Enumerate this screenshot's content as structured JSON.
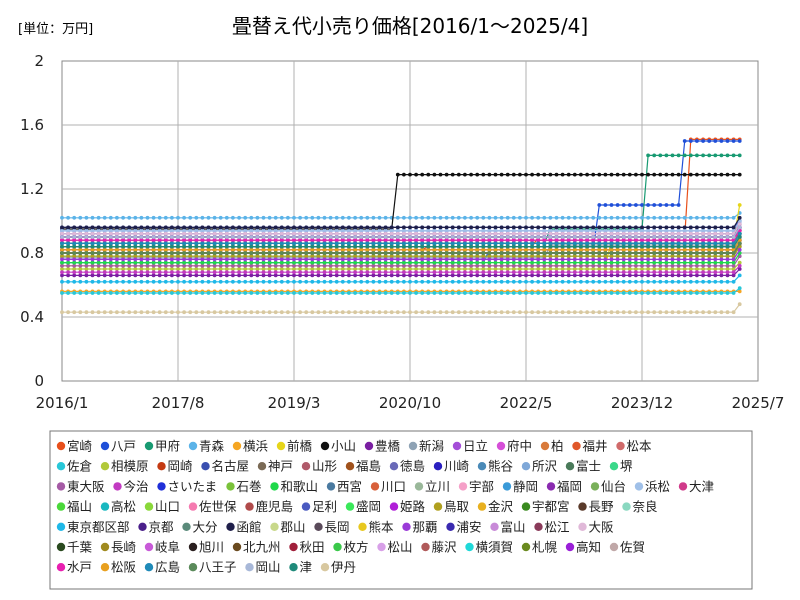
{
  "chart_data": {
    "type": "line",
    "title": "畳替え代小売り価格[2016/1〜2025/4]",
    "unit_label": "[単位：万円]",
    "xlabel": "",
    "ylabel": "",
    "x_ticks": [
      "2016/1",
      "2017/8",
      "2019/3",
      "2020/10",
      "2022/5",
      "2023/12",
      "2025/7"
    ],
    "y_ticks": [
      "0",
      "0.4",
      "0.8",
      "1.2",
      "1.6",
      "2"
    ],
    "ylim": [
      0,
      2
    ],
    "xlim_months": [
      0,
      114
    ],
    "grid": true,
    "legend_position": "bottom",
    "series": [
      {
        "name": "宮崎",
        "color": "#e8501c",
        "values": [
          [
            0,
            0.82
          ],
          [
            60,
            0.84
          ],
          [
            78,
            0.9
          ],
          [
            103,
            1.51
          ],
          [
            111,
            1.51
          ]
        ]
      },
      {
        "name": "八戸",
        "color": "#1f4fd8",
        "values": [
          [
            0,
            0.74
          ],
          [
            70,
            0.82
          ],
          [
            88,
            1.1
          ],
          [
            102,
            1.5
          ],
          [
            111,
            1.5
          ]
        ]
      },
      {
        "name": "甲府",
        "color": "#189a72",
        "values": [
          [
            0,
            0.86
          ],
          [
            80,
            0.95
          ],
          [
            96,
            1.41
          ],
          [
            111,
            1.41
          ]
        ]
      },
      {
        "name": "青森",
        "color": "#5bb3e8",
        "values": [
          [
            0,
            1.02
          ],
          [
            111,
            1.05
          ]
        ]
      },
      {
        "name": "横浜",
        "color": "#f5a623",
        "values": [
          [
            0,
            0.56
          ],
          [
            111,
            0.56
          ]
        ]
      },
      {
        "name": "前橋",
        "color": "#e6d51a",
        "values": [
          [
            0,
            0.72
          ],
          [
            90,
            0.88
          ],
          [
            111,
            1.1
          ]
        ]
      },
      {
        "name": "小山",
        "color": "#111111",
        "values": [
          [
            0,
            0.95
          ],
          [
            36,
            0.95
          ],
          [
            55,
            1.29
          ],
          [
            111,
            1.29
          ]
        ]
      },
      {
        "name": "豊橋",
        "color": "#7a1fa2",
        "values": [
          [
            0,
            0.66
          ],
          [
            111,
            0.7
          ]
        ]
      },
      {
        "name": "新潟",
        "color": "#8fa3b5",
        "values": [
          [
            0,
            0.77
          ],
          [
            80,
            0.85
          ],
          [
            111,
            1.0
          ]
        ]
      },
      {
        "name": "日立",
        "color": "#a44ed8",
        "values": [
          [
            0,
            0.9
          ],
          [
            111,
            0.95
          ]
        ]
      },
      {
        "name": "府中",
        "color": "#d64fd8",
        "values": [
          [
            0,
            0.86
          ],
          [
            111,
            0.9
          ]
        ]
      },
      {
        "name": "柏",
        "color": "#d97a3a",
        "values": [
          [
            0,
            0.8
          ],
          [
            111,
            0.85
          ]
        ]
      },
      {
        "name": "福井",
        "color": "#e0582a",
        "values": [
          [
            0,
            0.88
          ],
          [
            111,
            0.92
          ]
        ]
      },
      {
        "name": "松本",
        "color": "#d06a6a",
        "values": [
          [
            0,
            0.84
          ],
          [
            111,
            0.9
          ]
        ]
      },
      {
        "name": "佐倉",
        "color": "#28c7d8",
        "values": [
          [
            0,
            0.55
          ],
          [
            111,
            0.58
          ]
        ]
      },
      {
        "name": "相模原",
        "color": "#b2c93a",
        "values": [
          [
            0,
            0.7
          ],
          [
            111,
            0.74
          ]
        ]
      },
      {
        "name": "岡崎",
        "color": "#c43a12",
        "values": [
          [
            0,
            0.88
          ],
          [
            111,
            0.92
          ]
        ]
      },
      {
        "name": "名古屋",
        "color": "#3a4fb0",
        "values": [
          [
            0,
            0.96
          ],
          [
            111,
            1.0
          ]
        ]
      },
      {
        "name": "神戸",
        "color": "#7a6a55",
        "values": [
          [
            0,
            0.8
          ],
          [
            111,
            0.84
          ]
        ]
      },
      {
        "name": "山形",
        "color": "#b05a6a",
        "values": [
          [
            0,
            0.92
          ],
          [
            111,
            0.98
          ]
        ]
      },
      {
        "name": "福島",
        "color": "#a0521c",
        "values": [
          [
            0,
            0.82
          ],
          [
            111,
            0.88
          ]
        ]
      },
      {
        "name": "徳島",
        "color": "#6a6ab8",
        "values": [
          [
            0,
            0.9
          ],
          [
            111,
            0.96
          ]
        ]
      },
      {
        "name": "川崎",
        "color": "#2a1fc0",
        "values": [
          [
            0,
            0.86
          ],
          [
            111,
            0.92
          ]
        ]
      },
      {
        "name": "熊谷",
        "color": "#4a8ab8",
        "values": [
          [
            0,
            0.84
          ],
          [
            111,
            0.9
          ]
        ]
      },
      {
        "name": "所沢",
        "color": "#7fa8d8",
        "values": [
          [
            0,
            0.88
          ],
          [
            111,
            0.94
          ]
        ]
      },
      {
        "name": "富士",
        "color": "#4a7a5a",
        "values": [
          [
            0,
            0.8
          ],
          [
            111,
            0.86
          ]
        ]
      },
      {
        "name": "堺",
        "color": "#3ad88a",
        "values": [
          [
            0,
            0.78
          ],
          [
            111,
            0.84
          ]
        ]
      },
      {
        "name": "東大阪",
        "color": "#a55aa5",
        "values": [
          [
            0,
            0.72
          ],
          [
            111,
            0.78
          ]
        ]
      },
      {
        "name": "今治",
        "color": "#c23ac2",
        "values": [
          [
            0,
            0.68
          ],
          [
            111,
            0.72
          ]
        ]
      },
      {
        "name": "さいたま",
        "color": "#1f2fd8",
        "values": [
          [
            0,
            0.94
          ],
          [
            111,
            1.0
          ]
        ]
      },
      {
        "name": "石巻",
        "color": "#7ac23a",
        "values": [
          [
            0,
            0.86
          ],
          [
            111,
            0.92
          ]
        ]
      },
      {
        "name": "和歌山",
        "color": "#1fd84a",
        "values": [
          [
            0,
            0.74
          ],
          [
            111,
            0.8
          ]
        ]
      },
      {
        "name": "西宮",
        "color": "#4a7aa0",
        "values": [
          [
            0,
            0.82
          ],
          [
            111,
            0.88
          ]
        ]
      },
      {
        "name": "川口",
        "color": "#d8603a",
        "values": [
          [
            0,
            0.9
          ],
          [
            111,
            0.96
          ]
        ]
      },
      {
        "name": "立川",
        "color": "#9ab89a",
        "values": [
          [
            0,
            0.84
          ],
          [
            111,
            0.9
          ]
        ]
      },
      {
        "name": "宇部",
        "color": "#f5a0c8",
        "values": [
          [
            0,
            0.92
          ],
          [
            111,
            0.98
          ]
        ]
      },
      {
        "name": "静岡",
        "color": "#3a9ad8",
        "values": [
          [
            0,
            0.86
          ],
          [
            111,
            0.92
          ]
        ]
      },
      {
        "name": "福岡",
        "color": "#8a2ab0",
        "values": [
          [
            0,
            0.8
          ],
          [
            111,
            0.86
          ]
        ]
      },
      {
        "name": "仙台",
        "color": "#7ab05a",
        "values": [
          [
            0,
            0.88
          ],
          [
            111,
            0.94
          ]
        ]
      },
      {
        "name": "浜松",
        "color": "#a0c0e8",
        "values": [
          [
            0,
            0.94
          ],
          [
            111,
            1.0
          ]
        ]
      },
      {
        "name": "大津",
        "color": "#d03a8a",
        "values": [
          [
            0,
            0.82
          ],
          [
            111,
            0.88
          ]
        ]
      },
      {
        "name": "福山",
        "color": "#4ad83a",
        "values": [
          [
            0,
            0.86
          ],
          [
            111,
            0.92
          ]
        ]
      },
      {
        "name": "高松",
        "color": "#1ab8c0",
        "values": [
          [
            0,
            0.9
          ],
          [
            111,
            0.96
          ]
        ]
      },
      {
        "name": "山口",
        "color": "#8ad83a",
        "values": [
          [
            0,
            0.8
          ],
          [
            111,
            0.86
          ]
        ]
      },
      {
        "name": "佐世保",
        "color": "#f57ab0",
        "values": [
          [
            0,
            0.84
          ],
          [
            111,
            0.9
          ]
        ]
      },
      {
        "name": "鹿児島",
        "color": "#b04a4a",
        "values": [
          [
            0,
            0.88
          ],
          [
            111,
            0.94
          ]
        ]
      },
      {
        "name": "足利",
        "color": "#4a5ac0",
        "values": [
          [
            0,
            0.92
          ],
          [
            111,
            0.98
          ]
        ]
      },
      {
        "name": "盛岡",
        "color": "#3ae85a",
        "values": [
          [
            0,
            0.86
          ],
          [
            111,
            0.92
          ]
        ]
      },
      {
        "name": "姫路",
        "color": "#b01fd8",
        "values": [
          [
            0,
            0.82
          ],
          [
            111,
            0.88
          ]
        ]
      },
      {
        "name": "鳥取",
        "color": "#b0a01f",
        "values": [
          [
            0,
            0.78
          ],
          [
            111,
            0.84
          ]
        ]
      },
      {
        "name": "金沢",
        "color": "#e8b01f",
        "values": [
          [
            0,
            0.84
          ],
          [
            111,
            0.9
          ]
        ]
      },
      {
        "name": "宇都宮",
        "color": "#3a8a1f",
        "values": [
          [
            0,
            0.86
          ],
          [
            111,
            0.92
          ]
        ]
      },
      {
        "name": "長野",
        "color": "#5a3a2a",
        "values": [
          [
            0,
            0.8
          ],
          [
            111,
            0.86
          ]
        ]
      },
      {
        "name": "奈良",
        "color": "#8ad8c0",
        "values": [
          [
            0,
            0.9
          ],
          [
            111,
            0.96
          ]
        ]
      },
      {
        "name": "東京都区部",
        "color": "#1fb8e8",
        "values": [
          [
            0,
            0.62
          ],
          [
            111,
            0.66
          ]
        ]
      },
      {
        "name": "京都",
        "color": "#4a1f8a",
        "values": [
          [
            0,
            0.84
          ],
          [
            111,
            0.9
          ]
        ]
      },
      {
        "name": "大分",
        "color": "#5a8a7a",
        "values": [
          [
            0,
            0.88
          ],
          [
            111,
            0.94
          ]
        ]
      },
      {
        "name": "函館",
        "color": "#1f1f4a",
        "values": [
          [
            0,
            0.96
          ],
          [
            111,
            1.02
          ]
        ]
      },
      {
        "name": "郡山",
        "color": "#c8d88a",
        "values": [
          [
            0,
            0.8
          ],
          [
            111,
            0.86
          ]
        ]
      },
      {
        "name": "長岡",
        "color": "#5a4a5a",
        "values": [
          [
            0,
            0.86
          ],
          [
            111,
            0.92
          ]
        ]
      },
      {
        "name": "熊本",
        "color": "#e8c81f",
        "values": [
          [
            0,
            0.82
          ],
          [
            111,
            0.88
          ]
        ]
      },
      {
        "name": "那覇",
        "color": "#9a3ad8",
        "values": [
          [
            0,
            0.76
          ],
          [
            111,
            0.82
          ]
        ]
      },
      {
        "name": "浦安",
        "color": "#3a2ab0",
        "values": [
          [
            0,
            0.9
          ],
          [
            111,
            0.96
          ]
        ]
      },
      {
        "name": "富山",
        "color": "#c88ad8",
        "values": [
          [
            0,
            0.86
          ],
          [
            111,
            0.92
          ]
        ]
      },
      {
        "name": "松江",
        "color": "#8a3a5a",
        "values": [
          [
            0,
            0.8
          ],
          [
            111,
            0.86
          ]
        ]
      },
      {
        "name": "大阪",
        "color": "#e0b8d8",
        "values": [
          [
            0,
            0.92
          ],
          [
            111,
            0.98
          ]
        ]
      },
      {
        "name": "千葉",
        "color": "#2a4a1f",
        "values": [
          [
            0,
            0.84
          ],
          [
            111,
            0.9
          ]
        ]
      },
      {
        "name": "長崎",
        "color": "#a08a1f",
        "values": [
          [
            0,
            0.88
          ],
          [
            111,
            0.94
          ]
        ]
      },
      {
        "name": "岐阜",
        "color": "#c85ad8",
        "values": [
          [
            0,
            0.82
          ],
          [
            111,
            0.88
          ]
        ]
      },
      {
        "name": "旭川",
        "color": "#2a1f1f",
        "values": [
          [
            0,
            0.86
          ],
          [
            111,
            0.92
          ]
        ]
      },
      {
        "name": "北九州",
        "color": "#6a4a1f",
        "values": [
          [
            0,
            0.8
          ],
          [
            111,
            0.86
          ]
        ]
      },
      {
        "name": "秋田",
        "color": "#a01f3a",
        "values": [
          [
            0,
            0.9
          ],
          [
            111,
            0.96
          ]
        ]
      },
      {
        "name": "枚方",
        "color": "#3ac84a",
        "values": [
          [
            0,
            0.84
          ],
          [
            111,
            0.9
          ]
        ]
      },
      {
        "name": "松山",
        "color": "#d8a0e8",
        "values": [
          [
            0,
            0.88
          ],
          [
            111,
            0.94
          ]
        ]
      },
      {
        "name": "藤沢",
        "color": "#b05a5a",
        "values": [
          [
            0,
            0.82
          ],
          [
            111,
            0.88
          ]
        ]
      },
      {
        "name": "横須賀",
        "color": "#1fd8d8",
        "values": [
          [
            0,
            0.86
          ],
          [
            111,
            0.92
          ]
        ]
      },
      {
        "name": "札幌",
        "color": "#6a8a1f",
        "values": [
          [
            0,
            0.8
          ],
          [
            111,
            0.86
          ]
        ]
      },
      {
        "name": "高知",
        "color": "#9a1fd8",
        "values": [
          [
            0,
            0.9
          ],
          [
            111,
            0.96
          ]
        ]
      },
      {
        "name": "佐賀",
        "color": "#c0a8a8",
        "values": [
          [
            0,
            0.84
          ],
          [
            111,
            0.9
          ]
        ]
      },
      {
        "name": "水戸",
        "color": "#e81fb0",
        "values": [
          [
            0,
            0.88
          ],
          [
            111,
            0.94
          ]
        ]
      },
      {
        "name": "松阪",
        "color": "#e8a01f",
        "values": [
          [
            0,
            0.82
          ],
          [
            111,
            0.88
          ]
        ]
      },
      {
        "name": "広島",
        "color": "#1f8ab8",
        "values": [
          [
            0,
            0.86
          ],
          [
            111,
            0.92
          ]
        ]
      },
      {
        "name": "八王子",
        "color": "#5a8a5a",
        "values": [
          [
            0,
            0.8
          ],
          [
            111,
            0.86
          ]
        ]
      },
      {
        "name": "岡山",
        "color": "#a8b8d8",
        "values": [
          [
            0,
            0.9
          ],
          [
            111,
            0.96
          ]
        ]
      },
      {
        "name": "津",
        "color": "#1f8a7a",
        "values": [
          [
            0,
            0.84
          ],
          [
            111,
            0.9
          ]
        ]
      },
      {
        "name": "伊丹",
        "color": "#d8c8a0",
        "values": [
          [
            0,
            0.43
          ],
          [
            90,
            0.43
          ],
          [
            111,
            0.48
          ]
        ]
      }
    ]
  }
}
